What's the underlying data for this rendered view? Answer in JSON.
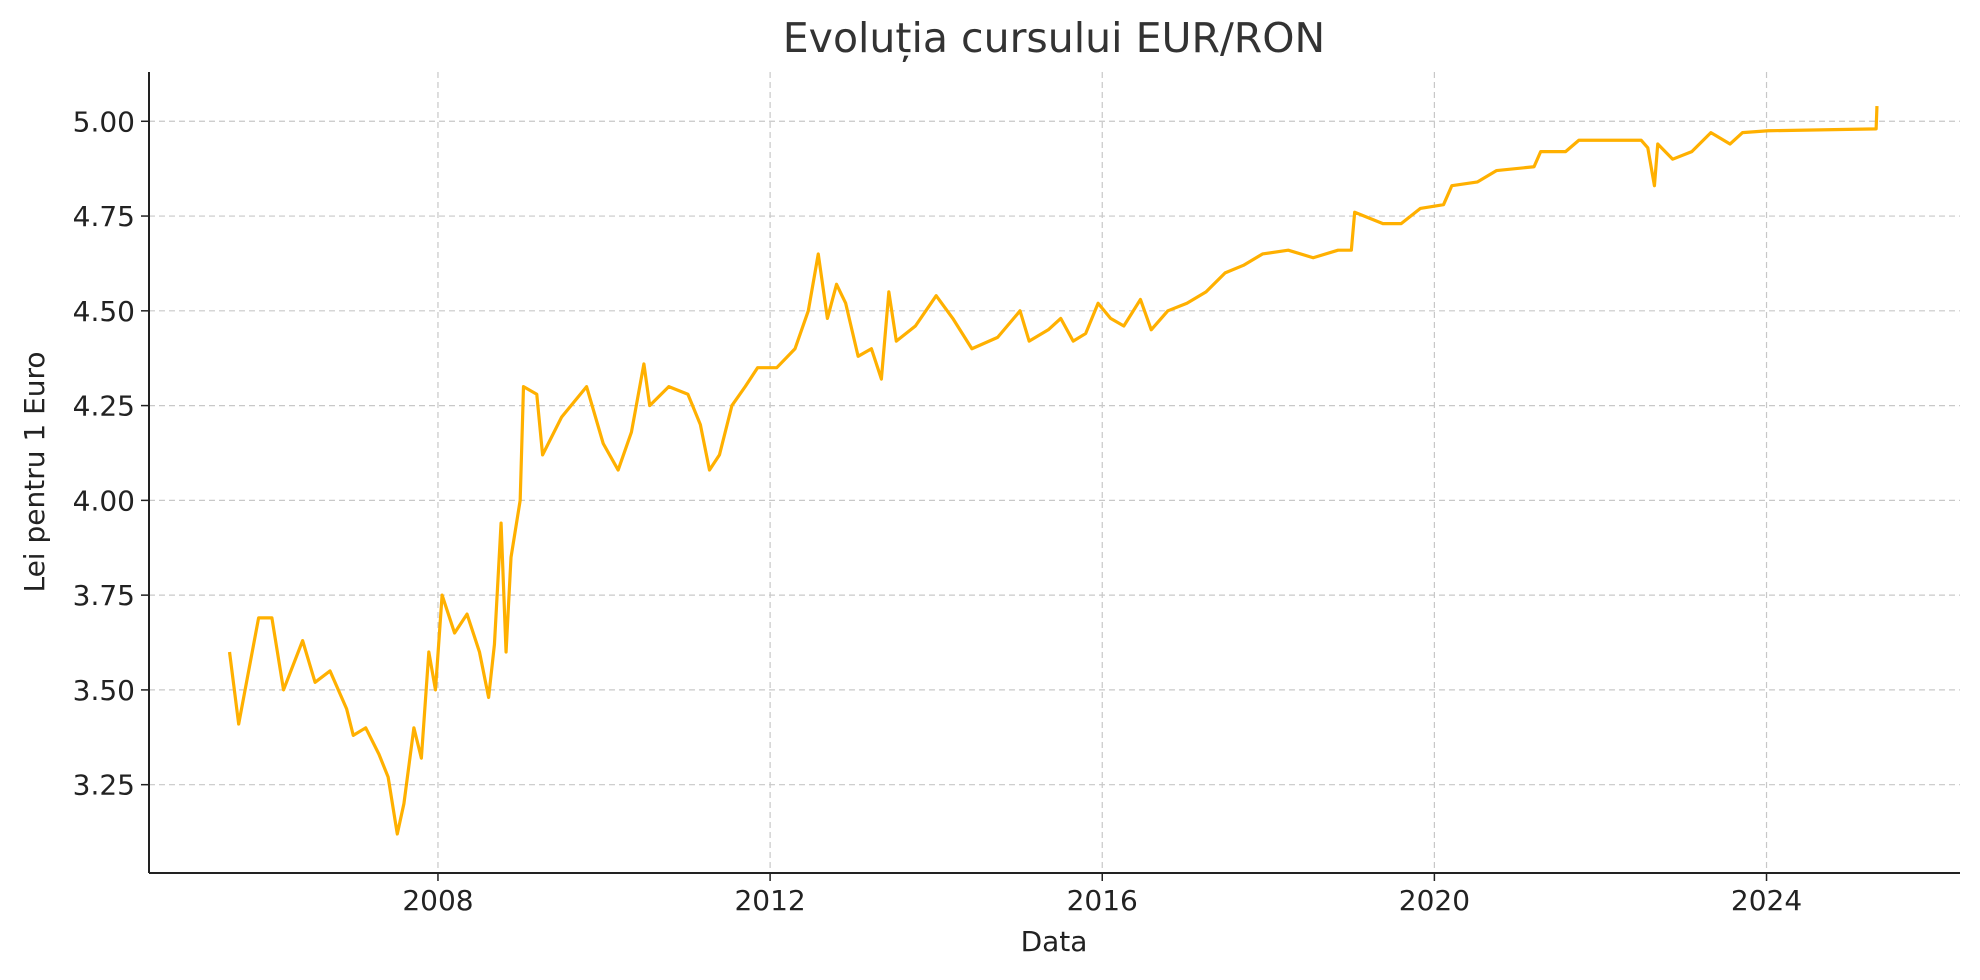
{
  "chart_data": {
    "type": "line",
    "title": "Evoluția cursului EUR/RON",
    "x_label": "Data",
    "y_label": "Lei pentru 1 Euro",
    "x": [
      2005.49,
      2005.6,
      2005.84,
      2006.0,
      2006.14,
      2006.37,
      2006.52,
      2006.7,
      2006.9,
      2006.98,
      2007.13,
      2007.29,
      2007.4,
      2007.51,
      2007.59,
      2007.71,
      2007.8,
      2007.89,
      2007.97,
      2008.05,
      2008.2,
      2008.35,
      2008.5,
      2008.61,
      2008.68,
      2008.76,
      2008.82,
      2008.88,
      2008.99,
      2009.03,
      2009.19,
      2009.26,
      2009.49,
      2009.79,
      2009.99,
      2010.17,
      2010.33,
      2010.48,
      2010.55,
      2010.78,
      2011.01,
      2011.16,
      2011.27,
      2011.39,
      2011.54,
      2011.7,
      2011.85,
      2012.08,
      2012.3,
      2012.46,
      2012.58,
      2012.69,
      2012.8,
      2012.91,
      2013.06,
      2013.22,
      2013.34,
      2013.43,
      2013.52,
      2013.75,
      2014.0,
      2014.2,
      2014.43,
      2014.74,
      2015.01,
      2015.12,
      2015.35,
      2015.5,
      2015.65,
      2015.8,
      2015.95,
      2016.1,
      2016.26,
      2016.46,
      2016.59,
      2016.79,
      2017.02,
      2017.25,
      2017.48,
      2017.7,
      2017.93,
      2018.24,
      2018.54,
      2018.84,
      2019.0,
      2019.04,
      2019.38,
      2019.6,
      2019.83,
      2020.11,
      2020.21,
      2020.52,
      2020.75,
      2021.2,
      2021.28,
      2021.58,
      2021.74,
      2022.49,
      2022.57,
      2022.65,
      2022.69,
      2022.87,
      2023.1,
      2023.33,
      2023.56,
      2023.71,
      2024.02,
      2025.32,
      2025.33
    ],
    "series": [
      {
        "name": "EUR/RON",
        "color": "#ffb000",
        "values": [
          3.6,
          3.41,
          3.69,
          3.69,
          3.5,
          3.63,
          3.52,
          3.55,
          3.45,
          3.38,
          3.4,
          3.33,
          3.27,
          3.12,
          3.2,
          3.4,
          3.32,
          3.6,
          3.5,
          3.75,
          3.65,
          3.7,
          3.6,
          3.48,
          3.62,
          3.94,
          3.6,
          3.85,
          4.0,
          4.3,
          4.28,
          4.12,
          4.22,
          4.3,
          4.15,
          4.08,
          4.18,
          4.36,
          4.25,
          4.3,
          4.28,
          4.2,
          4.08,
          4.12,
          4.25,
          4.3,
          4.35,
          4.35,
          4.4,
          4.5,
          4.65,
          4.48,
          4.57,
          4.52,
          4.38,
          4.4,
          4.32,
          4.55,
          4.42,
          4.46,
          4.54,
          4.48,
          4.4,
          4.43,
          4.5,
          4.42,
          4.45,
          4.48,
          4.42,
          4.44,
          4.52,
          4.48,
          4.46,
          4.53,
          4.45,
          4.5,
          4.52,
          4.55,
          4.6,
          4.62,
          4.65,
          4.66,
          4.64,
          4.66,
          4.66,
          4.76,
          4.73,
          4.73,
          4.77,
          4.78,
          4.83,
          4.84,
          4.87,
          4.88,
          4.92,
          4.92,
          4.95,
          4.95,
          4.93,
          4.83,
          4.94,
          4.9,
          4.92,
          4.97,
          4.94,
          4.97,
          4.975,
          4.98,
          5.04
        ]
      }
    ],
    "xlim": [
      2004.52,
      2026.33
    ],
    "xticks": [
      2008,
      2012,
      2016,
      2020,
      2024
    ],
    "ylim": [
      3.017,
      5.13
    ],
    "yticks": [
      {
        "value": 3.25,
        "label": "3.25"
      },
      {
        "value": 3.5,
        "label": "3.50"
      },
      {
        "value": 3.75,
        "label": "3.75"
      },
      {
        "value": 4.0,
        "label": "4.00"
      },
      {
        "value": 4.25,
        "label": "4.25"
      },
      {
        "value": 4.5,
        "label": "4.50"
      },
      {
        "value": 4.75,
        "label": "4.75"
      },
      {
        "value": 5.0,
        "label": "5.00"
      }
    ],
    "grid": true
  }
}
